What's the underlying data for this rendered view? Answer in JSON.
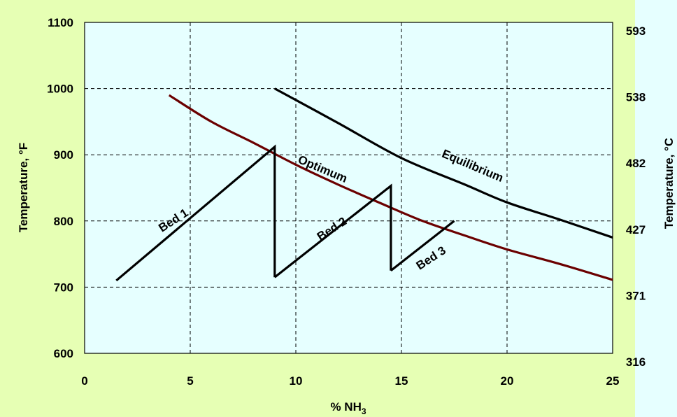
{
  "colors": {
    "page_background": "#e6ffb4",
    "plot_background": "#e6ffff",
    "optimum_curve": "#6b0000",
    "equilibrium_curve": "#000000",
    "bed_lines": "#000000"
  },
  "chart_data": {
    "type": "line",
    "xlabel": "% NH",
    "xlabel_subscript": "3",
    "ylabel_left": "Temperature, °F",
    "ylabel_right": "Temperature, °C",
    "xlim": [
      0,
      25
    ],
    "ylim": [
      600,
      1100
    ],
    "grid": true,
    "x_ticks": [
      0,
      5,
      10,
      15,
      20,
      25
    ],
    "y_ticks_left": [
      600,
      700,
      800,
      900,
      1000,
      1100
    ],
    "y_ticks_right": [
      {
        "label": "316",
        "f": 600
      },
      {
        "label": "371",
        "f": 700
      },
      {
        "label": "427",
        "f": 800
      },
      {
        "label": "482",
        "f": 900
      },
      {
        "label": "538",
        "f": 1000
      },
      {
        "label": "593",
        "f": 1100
      }
    ],
    "series": [
      {
        "name": "Equilibrium",
        "color": "#000000",
        "label_pos": {
          "x": 18.3,
          "y": 878
        },
        "label_angle": 23,
        "points": [
          [
            9,
            1000
          ],
          [
            12,
            948
          ],
          [
            15,
            895
          ],
          [
            18,
            855
          ],
          [
            20,
            828
          ],
          [
            22.5,
            802
          ],
          [
            25,
            775
          ]
        ]
      },
      {
        "name": "Optimum",
        "color": "#6b0000",
        "label_pos": {
          "x": 11.2,
          "y": 873
        },
        "label_angle": 23,
        "points": [
          [
            4,
            990
          ],
          [
            6,
            950
          ],
          [
            8,
            918
          ],
          [
            10,
            885
          ],
          [
            12,
            855
          ],
          [
            14,
            827
          ],
          [
            16,
            800
          ],
          [
            18,
            778
          ],
          [
            20,
            757
          ],
          [
            22.5,
            735
          ],
          [
            25,
            711
          ]
        ]
      },
      {
        "name": "Bed 1",
        "color": "#000000",
        "label_pos": {
          "x": 4.3,
          "y": 796
        },
        "label_angle": -33,
        "points": [
          [
            1.5,
            710
          ],
          [
            9,
            912
          ],
          [
            9,
            715
          ]
        ]
      },
      {
        "name": "Bed 2",
        "color": "#000000",
        "label_pos": {
          "x": 11.8,
          "y": 783
        },
        "label_angle": -33,
        "points": [
          [
            9,
            715
          ],
          [
            14.5,
            853
          ],
          [
            14.5,
            725
          ]
        ]
      },
      {
        "name": "Bed 3",
        "color": "#000000",
        "label_pos": {
          "x": 16.5,
          "y": 739
        },
        "label_angle": -33,
        "points": [
          [
            14.5,
            725
          ],
          [
            17.5,
            800
          ]
        ]
      }
    ]
  }
}
